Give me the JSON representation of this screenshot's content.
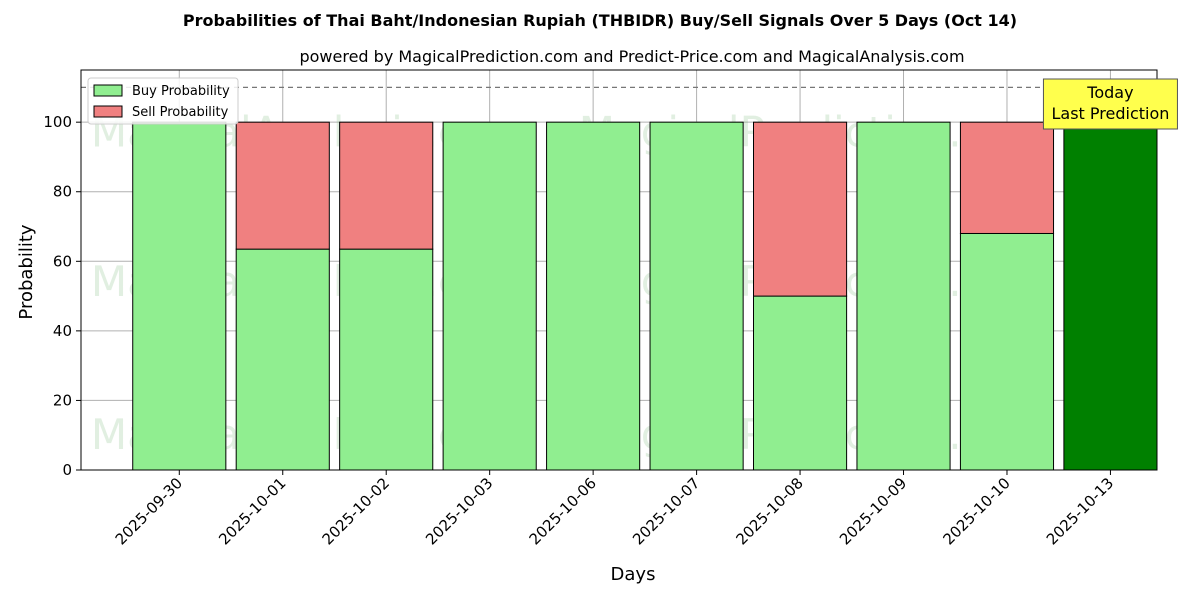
{
  "chart_data": {
    "type": "bar",
    "stacked": true,
    "title": "Probabilities of Thai Baht/Indonesian Rupiah (THBIDR) Buy/Sell Signals Over 5 Days (Oct 14)",
    "subtitle": "powered by MagicalPrediction.com and Predict-Price.com and MagicalAnalysis.com",
    "xlabel": "Days",
    "ylabel": "Probability",
    "ylim": [
      0,
      115
    ],
    "yticks": [
      0,
      20,
      40,
      60,
      80,
      100
    ],
    "grid": true,
    "legend_position": "top-left",
    "reference_line": 110,
    "categories": [
      "2025-09-30",
      "2025-10-01",
      "2025-10-02",
      "2025-10-03",
      "2025-10-06",
      "2025-10-07",
      "2025-10-08",
      "2025-10-09",
      "2025-10-10",
      "2025-10-13"
    ],
    "series": [
      {
        "name": "Buy Probability",
        "color": "#90ee90",
        "values": [
          100,
          63.5,
          63.5,
          100,
          100,
          100,
          50,
          100,
          68,
          100
        ]
      },
      {
        "name": "Sell Probability",
        "color": "#f08080",
        "values": [
          0,
          36.5,
          36.5,
          0,
          0,
          0,
          50,
          0,
          32,
          0
        ]
      }
    ],
    "highlight": {
      "index": 9,
      "color": "#008000"
    },
    "annotation": {
      "lines": [
        "Today",
        "Last Prediction"
      ],
      "background": "#ffff4d"
    },
    "watermarks": [
      "MagicalAnalysis.com",
      "MagicalPrediction.com"
    ]
  }
}
